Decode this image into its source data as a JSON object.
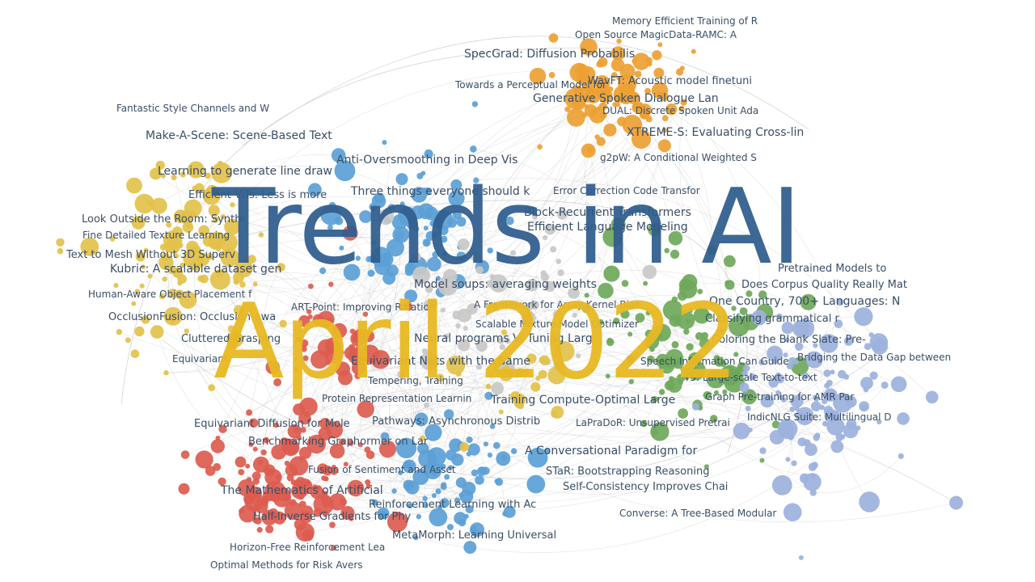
{
  "title": "Trends in AI",
  "subtitle": "April 2022",
  "colors": {
    "title": "#2f5d8e",
    "subtitle": "#e8b923",
    "clusters": {
      "yellow": "#e3c14a",
      "orange": "#eda133",
      "blue": "#5b9fd6",
      "red": "#dc5c4f",
      "green": "#6fa85a",
      "periwinkle": "#9cb1dc",
      "grey": "#c8c8c8"
    },
    "label": "#3a4f66",
    "edge": "#cfcfcf"
  },
  "paper_labels": [
    "Memory Efficient Training of R",
    "Open Source MagicData-RAMC: A",
    "SpecGrad: Diffusion Probabilis",
    "Towards a Perceptual Model for",
    "WavFT: Acoustic model finetuni",
    "Generative Spoken Dialogue Lan",
    "DUAL: Discrete Spoken Unit Ada",
    "XTREME-S: Evaluating Cross-lin",
    "g2pW: A Conditional Weighted S",
    "Fantastic Style Channels and W",
    "Make-A-Scene: Scene-Based Text",
    "Anti-Oversmoothing in Deep Vis",
    "Learning to generate line draw",
    "Efficient ViTs: Less is more",
    "Three things everyone should k",
    "Error Correction Code Transfor",
    "Block-Recurrent Transformers",
    "Efficient Language Modeling",
    "Look Outside the Room: Synth",
    "Fine Detailed Texture Learning",
    "Text to Mesh Without 3D Superv",
    "Kubric: A scalable dataset gen",
    "Pretrained Models to",
    "Does Corpus Quality Really Mat",
    "Model soups: averaging weights",
    "Human-Aware Object Placement f",
    "One Country, 700+ Languages: N",
    "ART-Point: Improving Rotation",
    "A Framework for Array Kernel Bias",
    "OcclusionFusion: Occlusion-awa",
    "Scalable Mixture Model Optimizer",
    "Classifying grammatical r",
    "Cluttered Grasping",
    "Neural programs V: Tuning Larg",
    "Coloring the Blank Slate: Pre-",
    "Equivariant",
    "Equivariant Nets with the Same",
    "Speech Information Can Guide",
    "Bridging the Data Gap between",
    "Tempering, Training",
    "T5: Large-scale Text-to-text",
    "Protein Representation Learnin",
    "Training Compute-Optimal Large",
    "Graph Pre-training for AMR Par",
    "Equivariant Diffusion for Mole",
    "Pathways: Asynchronous Distrib",
    "LaPraDoR: Unsupervised Pretrai",
    "IndicNLG Suite: Multilingual D",
    "Benchmarking Graphormer on Lar",
    "A Conversational Paradigm for",
    "Fusion of Sentiment and Asset",
    "STaR: Bootstrapping Reasoning",
    "The Mathematics of Artificial",
    "Self-Consistency Improves Chai",
    "Reinforcement Learning with Ac",
    "Half-Inverse Gradients for Phy",
    "Converse: A Tree-Based Modular",
    "MetaMorph: Learning Universal",
    "Horizon-Free Reinforcement Lea",
    "Optimal Methods for Risk Avers"
  ]
}
